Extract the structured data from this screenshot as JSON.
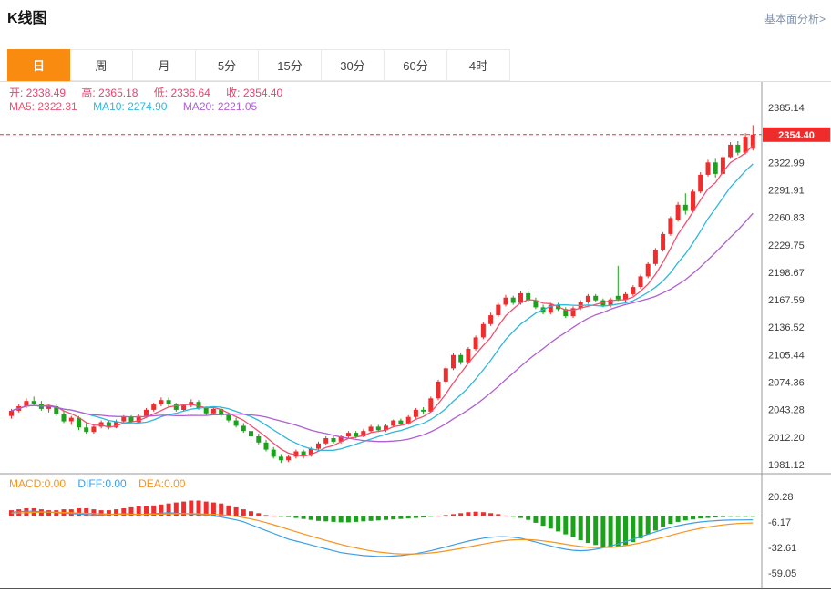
{
  "header": {
    "title": "K线图",
    "link": "基本面分析>"
  },
  "tabs": {
    "accent_color": "#fa8b11",
    "items": [
      {
        "label": "日",
        "selected": true
      },
      {
        "label": "周",
        "selected": false
      },
      {
        "label": "月",
        "selected": false
      },
      {
        "label": "5分",
        "selected": false
      },
      {
        "label": "15分",
        "selected": false
      },
      {
        "label": "30分",
        "selected": false
      },
      {
        "label": "60分",
        "selected": false
      },
      {
        "label": "4时",
        "selected": false
      }
    ]
  },
  "legend": {
    "ohlc_color": "#e5446d",
    "ohlc": [
      {
        "text": "开: 2338.49"
      },
      {
        "text": "高: 2365.18"
      },
      {
        "text": "低: 2336.64"
      },
      {
        "text": "收: 2354.40"
      }
    ],
    "ma": [
      {
        "text": "MA5: 2322.31",
        "color": "#f0506e"
      },
      {
        "text": "MA10: 2274.90",
        "color": "#2fb7dc"
      },
      {
        "text": "MA20: 2221.05",
        "color": "#b05fd2"
      }
    ],
    "macd": [
      {
        "text": "MACD:0.00",
        "color": "#f7941d"
      },
      {
        "text": "DIFF:0.00",
        "color": "#3b9fe6"
      },
      {
        "text": "DEA:0.00",
        "color": "#f7941d"
      }
    ]
  },
  "chart_data": [
    {
      "type": "candlestick",
      "name": "K线图-日线",
      "current_price": "2354.40",
      "ohlc": {
        "open": "2338.49",
        "high": "2365.18",
        "low": "2336.64",
        "close": "2354.40"
      },
      "ma_values": {
        "ma5": "2322.31",
        "ma10": "2274.90",
        "ma20": "2221.05"
      },
      "axis_values": [
        "2385.14",
        "2354.40",
        "2322.99",
        "2291.91",
        "2260.83",
        "2229.75",
        "2198.67",
        "2167.59",
        "2136.52",
        "2105.44",
        "2074.36",
        "2043.28",
        "2012.20",
        "1981.12"
      ],
      "highlight_index": 1,
      "up_color": "#ef2d2d",
      "down_color": "#1aa21a",
      "ma5_color": "#f0506e",
      "ma10_color": "#2fb7dc",
      "ma20_color": "#b05fd2",
      "price_color": "#ee2c2c",
      "candles": [
        [
          2036,
          2044,
          2033,
          2042
        ],
        [
          2042,
          2050,
          2040,
          2047
        ],
        [
          2047,
          2056,
          2045,
          2053
        ],
        [
          2053,
          2058,
          2048,
          2050
        ],
        [
          2050,
          2053,
          2042,
          2044
        ],
        [
          2044,
          2049,
          2040,
          2047
        ],
        [
          2047,
          2049,
          2036,
          2038
        ],
        [
          2038,
          2042,
          2028,
          2030
        ],
        [
          2030,
          2036,
          2026,
          2034
        ],
        [
          2034,
          2036,
          2020,
          2023
        ],
        [
          2023,
          2028,
          2016,
          2018
        ],
        [
          2018,
          2026,
          2016,
          2024
        ],
        [
          2024,
          2031,
          2022,
          2029
        ],
        [
          2029,
          2031,
          2021,
          2023
        ],
        [
          2023,
          2032,
          2022,
          2030
        ],
        [
          2030,
          2037,
          2028,
          2035
        ],
        [
          2035,
          2037,
          2027,
          2029
        ],
        [
          2029,
          2038,
          2028,
          2036
        ],
        [
          2036,
          2045,
          2034,
          2043
        ],
        [
          2043,
          2051,
          2041,
          2049
        ],
        [
          2049,
          2057,
          2047,
          2054
        ],
        [
          2054,
          2057,
          2046,
          2049
        ],
        [
          2049,
          2051,
          2041,
          2043
        ],
        [
          2043,
          2050,
          2041,
          2048
        ],
        [
          2048,
          2055,
          2046,
          2052
        ],
        [
          2052,
          2054,
          2043,
          2045
        ],
        [
          2045,
          2047,
          2037,
          2039
        ],
        [
          2039,
          2046,
          2037,
          2044
        ],
        [
          2044,
          2046,
          2035,
          2037
        ],
        [
          2037,
          2040,
          2029,
          2031
        ],
        [
          2031,
          2034,
          2023,
          2025
        ],
        [
          2025,
          2028,
          2017,
          2019
        ],
        [
          2019,
          2022,
          2011,
          2013
        ],
        [
          2013,
          2016,
          2004,
          2006
        ],
        [
          2006,
          2009,
          1996,
          1998
        ],
        [
          1998,
          2001,
          1988,
          1990
        ],
        [
          1990,
          1993,
          1983,
          1986
        ],
        [
          1986,
          1992,
          1984,
          1990
        ],
        [
          1990,
          1998,
          1988,
          1996
        ],
        [
          1996,
          1998,
          1988,
          1991
        ],
        [
          1991,
          2001,
          1990,
          1999
        ],
        [
          1999,
          2007,
          1997,
          2005
        ],
        [
          2005,
          2013,
          2003,
          2011
        ],
        [
          2011,
          2013,
          2005,
          2007
        ],
        [
          2007,
          2015,
          2005,
          2013
        ],
        [
          2013,
          2019,
          2011,
          2017
        ],
        [
          2017,
          2019,
          2011,
          2013
        ],
        [
          2013,
          2021,
          2012,
          2019
        ],
        [
          2019,
          2026,
          2017,
          2024
        ],
        [
          2024,
          2026,
          2018,
          2020
        ],
        [
          2020,
          2027,
          2018,
          2025
        ],
        [
          2025,
          2032,
          2023,
          2031
        ],
        [
          2031,
          2033,
          2025,
          2027
        ],
        [
          2027,
          2037,
          2026,
          2035
        ],
        [
          2035,
          2045,
          2033,
          2043
        ],
        [
          2043,
          2046,
          2038,
          2041
        ],
        [
          2041,
          2058,
          2040,
          2056
        ],
        [
          2056,
          2077,
          2054,
          2075
        ],
        [
          2075,
          2092,
          2072,
          2090
        ],
        [
          2090,
          2107,
          2088,
          2105
        ],
        [
          2105,
          2108,
          2094,
          2097
        ],
        [
          2097,
          2114,
          2095,
          2112
        ],
        [
          2112,
          2127,
          2110,
          2125
        ],
        [
          2125,
          2142,
          2123,
          2140
        ],
        [
          2140,
          2153,
          2138,
          2150
        ],
        [
          2150,
          2164,
          2148,
          2162
        ],
        [
          2162,
          2173,
          2160,
          2170
        ],
        [
          2170,
          2172,
          2162,
          2164
        ],
        [
          2164,
          2177,
          2162,
          2175
        ],
        [
          2175,
          2178,
          2165,
          2167
        ],
        [
          2167,
          2170,
          2157,
          2159
        ],
        [
          2159,
          2162,
          2151,
          2153
        ],
        [
          2153,
          2164,
          2151,
          2162
        ],
        [
          2162,
          2164,
          2155,
          2157
        ],
        [
          2157,
          2159,
          2147,
          2149
        ],
        [
          2149,
          2160,
          2147,
          2158
        ],
        [
          2158,
          2167,
          2156,
          2165
        ],
        [
          2165,
          2174,
          2163,
          2172
        ],
        [
          2172,
          2174,
          2165,
          2167
        ],
        [
          2167,
          2169,
          2159,
          2161
        ],
        [
          2161,
          2170,
          2159,
          2168
        ],
        [
          2172,
          2206,
          2166,
          2168
        ],
        [
          2168,
          2176,
          2164,
          2174
        ],
        [
          2174,
          2184,
          2172,
          2182
        ],
        [
          2182,
          2196,
          2180,
          2194
        ],
        [
          2194,
          2210,
          2192,
          2208
        ],
        [
          2208,
          2226,
          2206,
          2224
        ],
        [
          2224,
          2244,
          2222,
          2242
        ],
        [
          2242,
          2262,
          2240,
          2260
        ],
        [
          2258,
          2278,
          2256,
          2275
        ],
        [
          2275,
          2288,
          2264,
          2268
        ],
        [
          2268,
          2292,
          2266,
          2290
        ],
        [
          2290,
          2312,
          2288,
          2309
        ],
        [
          2309,
          2326,
          2307,
          2323
        ],
        [
          2323,
          2327,
          2306,
          2310
        ],
        [
          2310,
          2332,
          2308,
          2329
        ],
        [
          2329,
          2346,
          2327,
          2343
        ],
        [
          2343,
          2347,
          2331,
          2334
        ],
        [
          2334,
          2356,
          2332,
          2352
        ],
        [
          2338.49,
          2365.18,
          2336.64,
          2354.4
        ]
      ]
    },
    {
      "type": "bar",
      "name": "MACD",
      "values_label": {
        "macd": "0.00",
        "diff": "0.00",
        "dea": "0.00"
      },
      "axis_values": [
        "20.28",
        "-6.17",
        "-32.61",
        "-59.05"
      ],
      "pos_color": "#ef2d2d",
      "neg_color": "#1aa21a",
      "diff_color": "#3b9fe6",
      "dea_color": "#f7941d",
      "histogram": [
        6,
        7,
        8,
        8,
        7,
        6,
        6,
        7,
        7,
        8,
        8,
        7,
        6,
        6,
        7,
        8,
        9,
        10,
        10,
        11,
        12,
        13,
        14,
        15,
        16,
        16,
        15,
        14,
        13,
        11,
        9,
        7,
        5,
        3,
        1,
        0.3,
        -0.5,
        -1,
        -2,
        -3,
        -4,
        -5,
        -5.5,
        -6,
        -6.5,
        -6.5,
        -6,
        -5.5,
        -5,
        -4.5,
        -4,
        -3.5,
        -3,
        -2.5,
        -2,
        -1.5,
        -0.5,
        0.3,
        1,
        2,
        3,
        4,
        4.5,
        4,
        3,
        2,
        0.5,
        -0.5,
        -2,
        -4,
        -7,
        -10,
        -13,
        -16,
        -19,
        -22,
        -25,
        -28,
        -30,
        -32,
        -33,
        -32,
        -30,
        -27,
        -23,
        -19,
        -15,
        -11,
        -8,
        -6,
        -4.5,
        -3.5,
        -2.5,
        -2,
        -1.5,
        -1,
        -0.8,
        -0.5,
        -0.3,
        -0.1
      ],
      "diff": [
        4,
        4.5,
        5,
        5,
        4.5,
        4,
        3.5,
        3,
        2.5,
        2,
        1.5,
        1,
        1,
        1.5,
        2,
        2.5,
        2,
        1.5,
        2,
        2.5,
        3,
        3.5,
        3,
        2.5,
        2,
        1.5,
        1,
        0,
        -1,
        -2.5,
        -4,
        -6,
        -9,
        -12,
        -15,
        -18,
        -21,
        -24,
        -26,
        -28,
        -30,
        -32,
        -34,
        -36,
        -38,
        -39,
        -40,
        -41,
        -41.5,
        -42,
        -42,
        -41.5,
        -41,
        -40,
        -39,
        -37.5,
        -36,
        -34,
        -32,
        -30,
        -28,
        -26,
        -24.5,
        -23,
        -22,
        -21.5,
        -21.5,
        -22,
        -23,
        -25,
        -27,
        -29,
        -31,
        -33,
        -34.5,
        -35.5,
        -36,
        -35.5,
        -34.5,
        -33,
        -31,
        -29,
        -26.5,
        -24,
        -21.5,
        -19,
        -16.5,
        -14,
        -12,
        -10,
        -8.5,
        -7.2,
        -6.2,
        -5.4,
        -4.8,
        -4.4,
        -4.2,
        -4.1,
        -4,
        -4
      ],
      "dea": [
        3,
        3.2,
        3.5,
        3.8,
        4,
        4,
        3.9,
        3.7,
        3.4,
        3.1,
        2.8,
        2.5,
        2.2,
        2,
        1.9,
        1.9,
        1.9,
        1.8,
        1.8,
        1.9,
        2,
        2.2,
        2.3,
        2.4,
        2.4,
        2.3,
        2.1,
        1.8,
        1.3,
        0.6,
        -0.3,
        -1.5,
        -3,
        -4.8,
        -6.8,
        -9,
        -11.4,
        -13.9,
        -16.3,
        -18.6,
        -20.9,
        -23.1,
        -25.3,
        -27.4,
        -29.5,
        -31.4,
        -33.1,
        -34.7,
        -36.1,
        -37.3,
        -38.2,
        -38.9,
        -39.3,
        -39.4,
        -39.3,
        -38.9,
        -38.3,
        -37.4,
        -36.3,
        -35,
        -33.6,
        -32.1,
        -30.6,
        -29.1,
        -27.7,
        -26.4,
        -25.4,
        -24.7,
        -24.4,
        -24.5,
        -25,
        -25.8,
        -26.8,
        -28,
        -29.3,
        -30.5,
        -31.6,
        -32.4,
        -32.8,
        -32.8,
        -32.4,
        -31.7,
        -30.7,
        -29.4,
        -27.8,
        -26,
        -24.1,
        -22.1,
        -20.1,
        -18.1,
        -16.2,
        -14.4,
        -12.8,
        -11.4,
        -10.2,
        -9.2,
        -8.4,
        -7.8,
        -7.4,
        -7.2
      ]
    }
  ]
}
